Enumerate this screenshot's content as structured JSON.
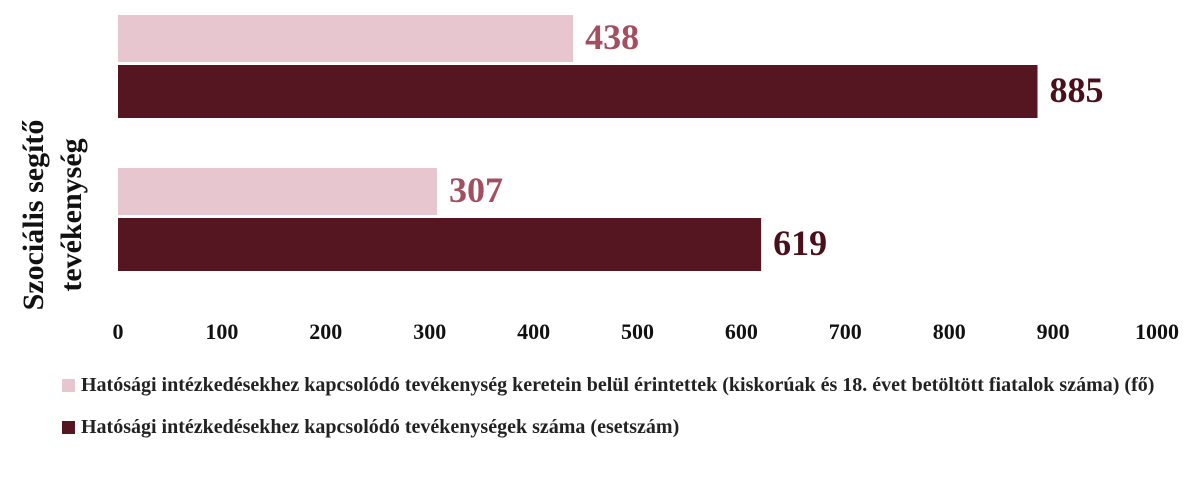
{
  "chart_data": {
    "type": "hbar",
    "ylabel": [
      "Szociális segítő",
      "tevékenység"
    ],
    "categories": [
      null,
      null
    ],
    "series": [
      {
        "name": "Hatósági intézkedésekhez kapcsolódó tevékenység keretein belül érintettek (kiskorúak és 18. évet betöltött fiatalok száma) (fő)",
        "color": "#e8c6cf",
        "label_color": "#a34f60",
        "values": [
          438,
          307
        ]
      },
      {
        "name": "Hatósági intézkedésekhez kapcsolódó tevékenységek száma (esetszám)",
        "color": "#551521",
        "label_color": "#4a0f1a",
        "values": [
          885,
          619
        ]
      }
    ],
    "xlim": [
      0,
      1000
    ],
    "xticks": [
      0,
      100,
      200,
      300,
      400,
      500,
      600,
      700,
      800,
      900,
      1000
    ],
    "grid": false,
    "legend": "bottom"
  }
}
